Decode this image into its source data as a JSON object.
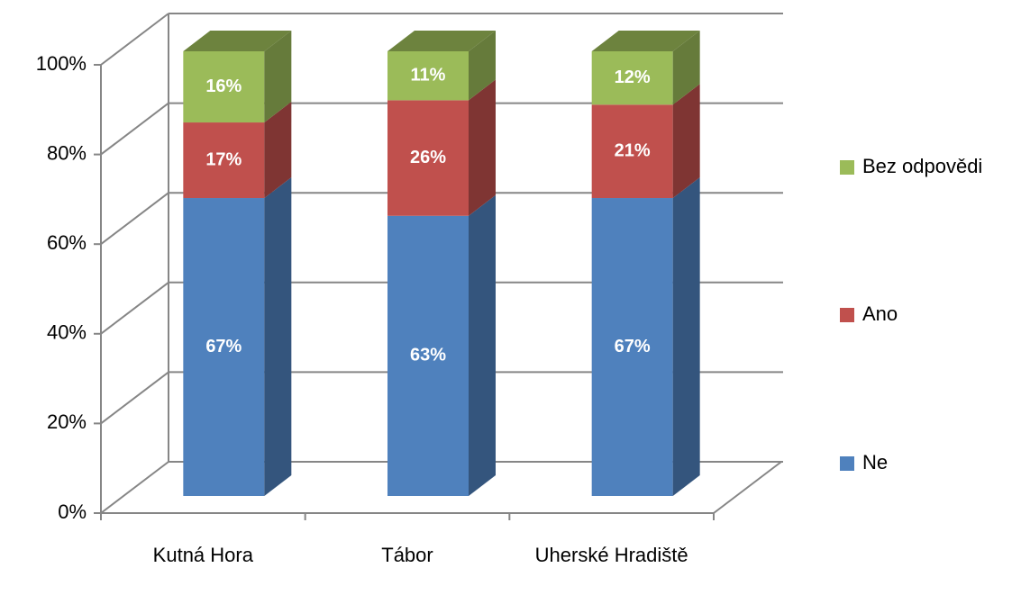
{
  "chart_data": {
    "type": "bar3d_stacked",
    "categories": [
      "Kutná Hora",
      "Tábor",
      "Uherské Hradiště"
    ],
    "series": [
      {
        "name": "Ne",
        "color": "#4f81bd",
        "values": [
          67,
          63,
          67
        ],
        "value_labels": [
          "67%",
          "63%",
          "67%"
        ]
      },
      {
        "name": "Ano",
        "color": "#c0504d",
        "values": [
          17,
          26,
          21
        ],
        "value_labels": [
          "17%",
          "26%",
          "21%"
        ]
      },
      {
        "name": "Bez odpovědi",
        "color": "#9bbb59",
        "values": [
          16,
          11,
          12
        ],
        "value_labels": [
          "16%",
          "11%",
          "12%"
        ]
      }
    ],
    "ylim": [
      0,
      100
    ],
    "yticks": [
      {
        "value": 0,
        "label": "0%"
      },
      {
        "value": 20,
        "label": "20%"
      },
      {
        "value": 40,
        "label": "40%"
      },
      {
        "value": 60,
        "label": "60%"
      },
      {
        "value": 80,
        "label": "80%"
      },
      {
        "value": 100,
        "label": "100%"
      }
    ],
    "grid": true,
    "legend": "right"
  }
}
